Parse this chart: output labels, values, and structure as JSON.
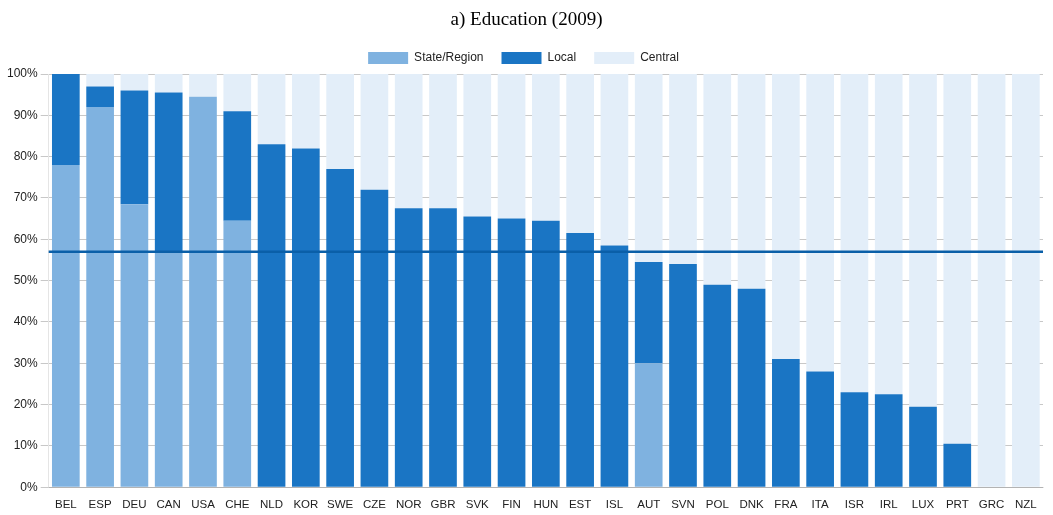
{
  "chart_data": {
    "type": "bar",
    "title": "a) Education (2009)",
    "stacked": true,
    "categories": [
      "BEL",
      "ESP",
      "DEU",
      "CAN",
      "USA",
      "CHE",
      "NLD",
      "KOR",
      "SWE",
      "CZE",
      "NOR",
      "GBR",
      "SVK",
      "FIN",
      "HUN",
      "EST",
      "ISL",
      "AUT",
      "SVN",
      "POL",
      "DNK",
      "FRA",
      "ITA",
      "ISR",
      "IRL",
      "LUX",
      "PRT",
      "GRC",
      "NZL"
    ],
    "series": [
      {
        "name": "State/Region",
        "color": "#7fb2e0",
        "values": [
          78,
          92,
          68.5,
          57,
          94.5,
          64.5,
          0,
          0,
          0,
          0,
          0,
          0,
          0,
          0,
          0,
          0,
          0,
          30,
          0,
          0,
          0,
          0,
          0,
          0,
          0,
          0,
          0,
          0,
          0
        ]
      },
      {
        "name": "Local",
        "color": "#1a75c4",
        "values": [
          22,
          5,
          27.5,
          38.5,
          0,
          26.5,
          83,
          82,
          77,
          72,
          67.5,
          67.5,
          65.5,
          65,
          64.5,
          61.5,
          58.5,
          24.5,
          54,
          49,
          48,
          31,
          28,
          23,
          22.5,
          19.5,
          10.5,
          0,
          0
        ]
      },
      {
        "name": "Central",
        "color": "#e3eef9",
        "values": [
          0,
          3,
          4,
          4.5,
          5.5,
          9,
          17,
          18,
          23,
          28,
          32.5,
          32.5,
          34.5,
          35,
          35.5,
          38.5,
          41.5,
          45.5,
          46,
          51,
          52,
          69,
          72,
          77,
          77.5,
          80.5,
          89.5,
          100,
          100
        ]
      }
    ],
    "ylim": [
      0,
      100
    ],
    "yticks": [
      {
        "value": 0,
        "label": "0%"
      },
      {
        "value": 10,
        "label": "10%"
      },
      {
        "value": 20,
        "label": "20%"
      },
      {
        "value": 30,
        "label": "30%"
      },
      {
        "value": 40,
        "label": "40%"
      },
      {
        "value": 50,
        "label": "50%"
      },
      {
        "value": 60,
        "label": "60%"
      },
      {
        "value": 70,
        "label": "70%"
      },
      {
        "value": 80,
        "label": "80%"
      },
      {
        "value": 90,
        "label": "90%"
      },
      {
        "value": 100,
        "label": "100%"
      }
    ],
    "grid": "y",
    "legend": "top",
    "ref_lines": [
      {
        "axis": "y",
        "value": 57,
        "color": "#0a5fa8"
      }
    ]
  }
}
